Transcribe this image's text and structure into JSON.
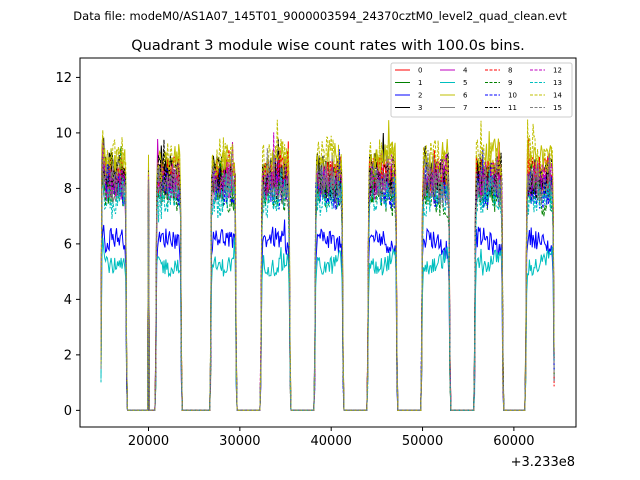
{
  "chart_data": {
    "type": "line",
    "suptitle": "Data file: modeM0/AS1A07_145T01_9000003594_24370cztM0_level2_quad_clean.evt",
    "title": "Quadrant 3 module wise count rates with 100.0s bins.",
    "xlabel": "",
    "ylabel": "",
    "x_offset_label": "+3.233e8",
    "xlim": [
      12500,
      66800
    ],
    "ylim": [
      -0.6,
      12.7
    ],
    "xticks": [
      20000,
      30000,
      40000,
      50000,
      60000
    ],
    "xtick_labels": [
      "20000",
      "30000",
      "40000",
      "50000",
      "60000"
    ],
    "yticks": [
      0,
      2,
      4,
      6,
      8,
      10,
      12
    ],
    "ytick_labels": [
      "0",
      "2",
      "4",
      "6",
      "8",
      "10",
      "12"
    ],
    "bin_seconds": 100,
    "on_intervals": [
      [
        14800,
        17600
      ],
      [
        20800,
        23600
      ],
      [
        26800,
        29600
      ],
      [
        32300,
        35500
      ],
      [
        38200,
        41300
      ],
      [
        44000,
        47200
      ],
      [
        49900,
        53000
      ],
      [
        55700,
        58800
      ],
      [
        61300,
        64400
      ]
    ],
    "spikes": [
      [
        20000,
        8.8
      ],
      [
        33500,
        9.5
      ],
      [
        46000,
        9.5
      ],
      [
        52200,
        9.0
      ]
    ],
    "legend": {
      "position": "upper right",
      "ncol": 4
    },
    "series": [
      {
        "name": "0",
        "color": "#ff0000",
        "dash": "solid",
        "level": 8.4
      },
      {
        "name": "1",
        "color": "#008000",
        "dash": "solid",
        "level": 7.9
      },
      {
        "name": "2",
        "color": "#0000ff",
        "dash": "solid",
        "level": 6.0
      },
      {
        "name": "3",
        "color": "#000000",
        "dash": "solid",
        "level": 8.6
      },
      {
        "name": "4",
        "color": "#bf00bf",
        "dash": "solid",
        "level": 8.2
      },
      {
        "name": "5",
        "color": "#00bfbf",
        "dash": "solid",
        "level": 5.4
      },
      {
        "name": "6",
        "color": "#bfbf00",
        "dash": "solid",
        "level": 9.0
      },
      {
        "name": "7",
        "color": "#808080",
        "dash": "solid",
        "level": 8.0
      },
      {
        "name": "8",
        "color": "#ff0000",
        "dash": "dashed",
        "level": 8.3
      },
      {
        "name": "9",
        "color": "#008000",
        "dash": "dashed",
        "level": 7.8
      },
      {
        "name": "10",
        "color": "#0000ff",
        "dash": "dashed",
        "level": 8.1
      },
      {
        "name": "11",
        "color": "#000000",
        "dash": "dashed",
        "level": 8.5
      },
      {
        "name": "12",
        "color": "#bf00bf",
        "dash": "dashed",
        "level": 8.4
      },
      {
        "name": "13",
        "color": "#00bfbf",
        "dash": "dashed",
        "level": 7.6
      },
      {
        "name": "14",
        "color": "#bfbf00",
        "dash": "dashed",
        "level": 8.9
      },
      {
        "name": "15",
        "color": "#808080",
        "dash": "dashed",
        "level": 8.1
      }
    ]
  }
}
